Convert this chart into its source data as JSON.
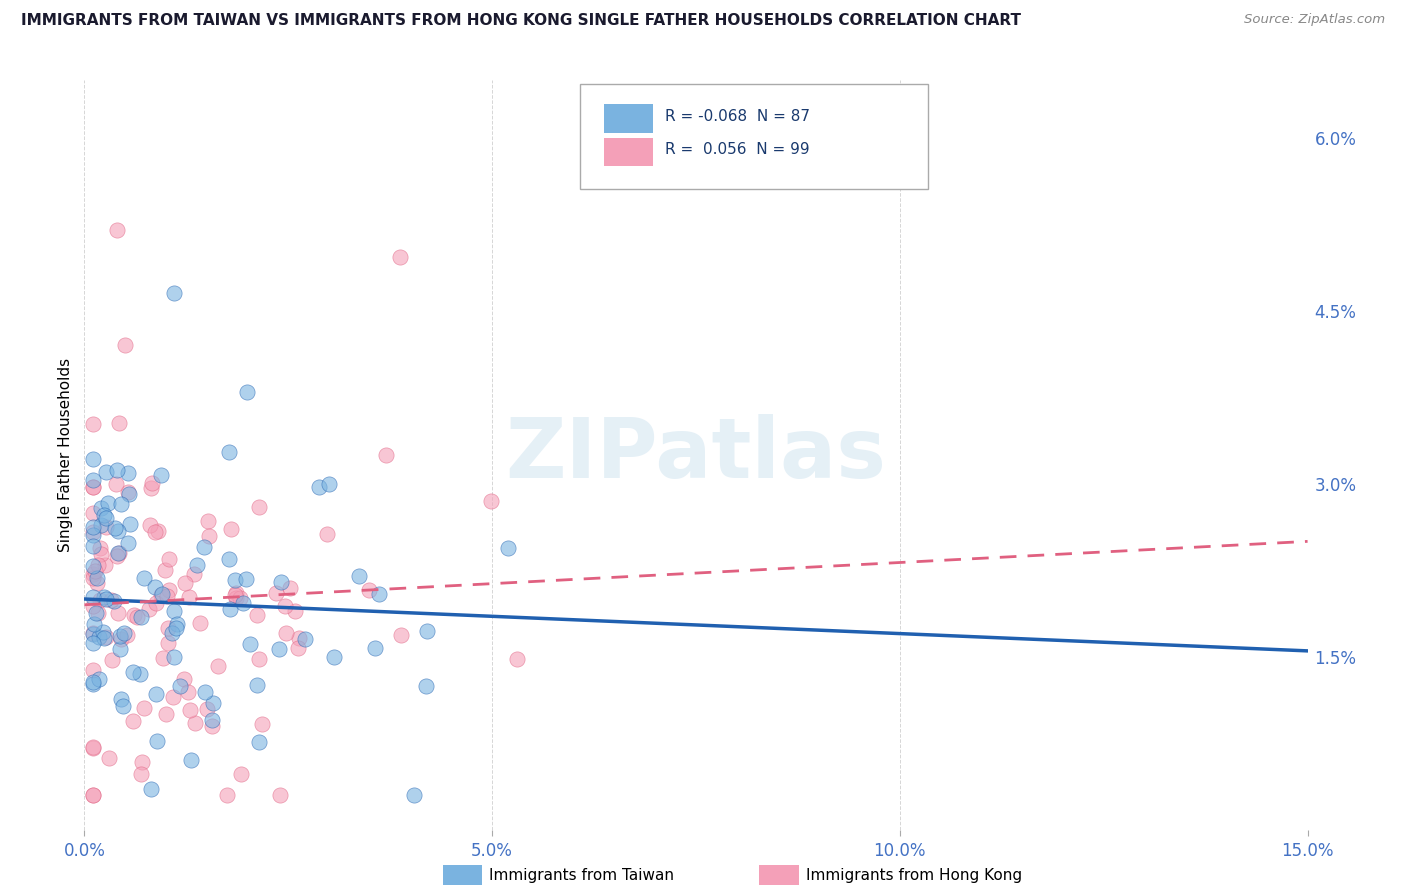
{
  "title": "IMMIGRANTS FROM TAIWAN VS IMMIGRANTS FROM HONG KONG SINGLE FATHER HOUSEHOLDS CORRELATION CHART",
  "source": "Source: ZipAtlas.com",
  "ylabel": "Single Father Households",
  "xlim": [
    0.0,
    0.15
  ],
  "ylim": [
    0.0,
    0.065
  ],
  "xticks": [
    0.0,
    0.05,
    0.1,
    0.15
  ],
  "xticklabels": [
    "0.0%",
    "5.0%",
    "10.0%",
    "15.0%"
  ],
  "yticks": [
    0.015,
    0.03,
    0.045,
    0.06
  ],
  "yticklabels": [
    "1.5%",
    "3.0%",
    "4.5%",
    "6.0%"
  ],
  "taiwan_color": "#7ab3e0",
  "hongkong_color": "#f4a0b8",
  "taiwan_line_color": "#2060b0",
  "hongkong_line_color": "#e06080",
  "taiwan_R": -0.068,
  "taiwan_N": 87,
  "hongkong_R": 0.056,
  "hongkong_N": 99,
  "watermark_text": "ZIPatlas",
  "tw_line_start_y": 0.02,
  "tw_line_end_y": 0.0155,
  "hk_line_start_y": 0.0195,
  "hk_line_end_y": 0.025
}
